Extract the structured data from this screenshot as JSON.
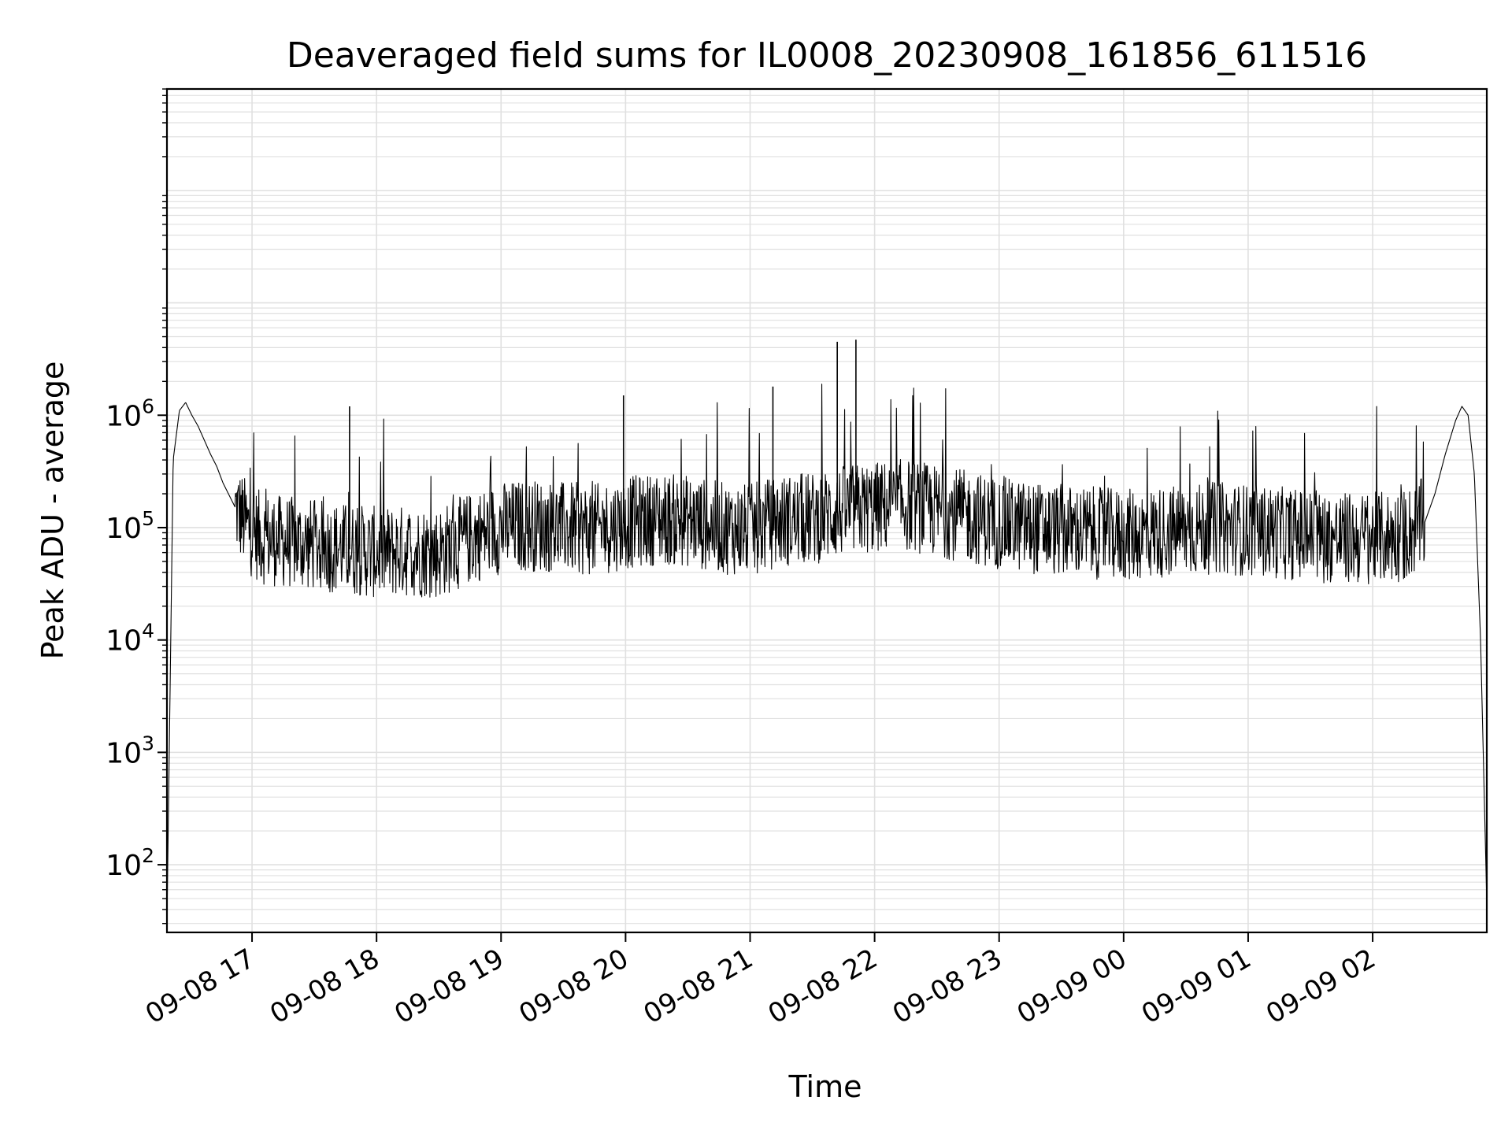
{
  "chart_data": {
    "type": "line",
    "title": "Deaveraged field sums for IL0008_20230908_161856_611516",
    "xlabel": "Time",
    "ylabel": "Peak ADU - average",
    "x_start": "2023-09-08 16:19",
    "x_end": "2023-09-09 02:55",
    "xlim": [
      "2023-09-08 16:19",
      "2023-09-09 02:55"
    ],
    "ylim": [
      25,
      800000000
    ],
    "yscale": "log",
    "grid": true,
    "line_color": "#000000",
    "grid_color": "#e0e0e0",
    "x_ticks": [
      {
        "label": "09-08 17"
      },
      {
        "label": "09-08 18"
      },
      {
        "label": "09-08 19"
      },
      {
        "label": "09-08 20"
      },
      {
        "label": "09-08 21"
      },
      {
        "label": "09-08 22"
      },
      {
        "label": "09-08 23"
      },
      {
        "label": "09-09 00"
      },
      {
        "label": "09-09 01"
      },
      {
        "label": "09-09 02"
      }
    ],
    "y_ticks": [
      {
        "value": 100,
        "mantissa": "10",
        "exp": "2"
      },
      {
        "value": 1000,
        "mantissa": "10",
        "exp": "3"
      },
      {
        "value": 10000,
        "mantissa": "10",
        "exp": "4"
      },
      {
        "value": 100000,
        "mantissa": "10",
        "exp": "5"
      },
      {
        "value": 1000000,
        "mantissa": "10",
        "exp": "6"
      }
    ],
    "series": [
      {
        "x": [
          "2023-09-08 16:19",
          "2023-09-08 16:22",
          "2023-09-08 16:25",
          "2023-09-08 16:28",
          "2023-09-08 16:31",
          "2023-09-08 16:34",
          "2023-09-08 16:37",
          "2023-09-08 16:40",
          "2023-09-08 16:43",
          "2023-09-08 16:46",
          "2023-09-08 16:52",
          "2023-09-08 16:58",
          "2023-09-08 17:05",
          "2023-09-08 17:15",
          "2023-09-08 17:30",
          "2023-09-08 17:45",
          "2023-09-08 18:00",
          "2023-09-08 18:15",
          "2023-09-08 18:30",
          "2023-09-08 18:45",
          "2023-09-08 19:00",
          "2023-09-08 19:15",
          "2023-09-08 19:30",
          "2023-09-08 19:45",
          "2023-09-08 20:00",
          "2023-09-08 20:15",
          "2023-09-08 20:30",
          "2023-09-08 20:45",
          "2023-09-08 21:00",
          "2023-09-08 21:15",
          "2023-09-08 21:30",
          "2023-09-08 21:45",
          "2023-09-08 22:00",
          "2023-09-08 22:15",
          "2023-09-08 22:30",
          "2023-09-08 22:45",
          "2023-09-08 23:00",
          "2023-09-08 23:15",
          "2023-09-08 23:30",
          "2023-09-08 23:45",
          "2023-09-09 00:00",
          "2023-09-09 00:15",
          "2023-09-09 00:30",
          "2023-09-09 00:45",
          "2023-09-09 01:00",
          "2023-09-09 01:15",
          "2023-09-09 01:30",
          "2023-09-09 01:45",
          "2023-09-09 02:00",
          "2023-09-09 02:15",
          "2023-09-09 02:25",
          "2023-09-09 02:30",
          "2023-09-09 02:35",
          "2023-09-09 02:40",
          "2023-09-09 02:43",
          "2023-09-09 02:46",
          "2023-09-09 02:49",
          "2023-09-09 02:52",
          "2023-09-09 02:55"
        ],
        "y": [
          30,
          400000,
          1100000,
          1300000,
          1000000,
          800000,
          600000,
          450000,
          350000,
          250000,
          150000,
          100000,
          80000,
          75000,
          70000,
          65000,
          60000,
          62000,
          60000,
          80000,
          100000,
          105000,
          100000,
          95000,
          110000,
          120000,
          115000,
          100000,
          95000,
          115000,
          120000,
          140000,
          150000,
          160000,
          140000,
          125000,
          110000,
          100000,
          95000,
          90000,
          85000,
          90000,
          95000,
          100000,
          95000,
          90000,
          85000,
          80000,
          80000,
          85000,
          110000,
          200000,
          450000,
          900000,
          1200000,
          1000000,
          300000,
          10000,
          45
        ]
      }
    ],
    "spikes": [
      {
        "x": "2023-09-08 21:42",
        "y": 4500000
      },
      {
        "x": "2023-09-08 21:51",
        "y": 4700000
      },
      {
        "x": "2023-09-08 21:11",
        "y": 1800000
      },
      {
        "x": "2023-09-08 19:59",
        "y": 1500000
      },
      {
        "x": "2023-09-08 17:47",
        "y": 1200000
      }
    ]
  }
}
